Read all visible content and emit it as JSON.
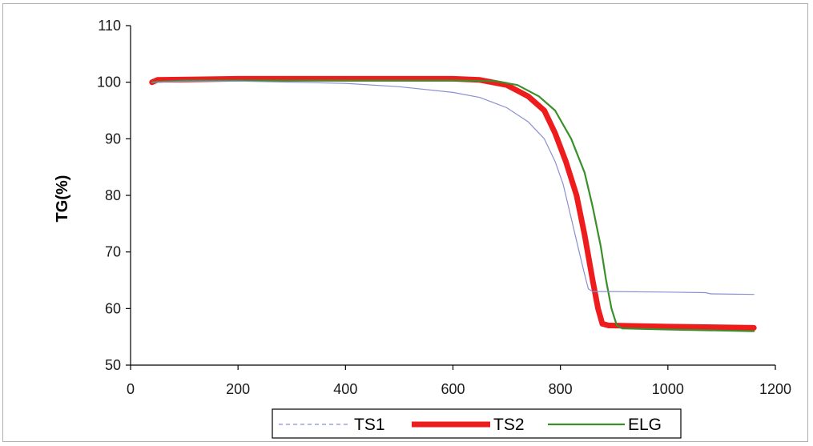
{
  "chart_data": {
    "type": "line",
    "xlabel": "",
    "ylabel": "TG(%)",
    "xlim": [
      0,
      1200
    ],
    "ylim": [
      50,
      110
    ],
    "xticks": [
      "0",
      "200",
      "400",
      "600",
      "800",
      "1000",
      "1200"
    ],
    "yticks": [
      "50",
      "60",
      "70",
      "80",
      "90",
      "100",
      "110"
    ],
    "grid": false,
    "legend_position": "bottom",
    "series": [
      {
        "name": "TS1",
        "color": "#8a8fd0",
        "style": "thin",
        "points": [
          [
            40,
            100.0
          ],
          [
            100,
            100.2
          ],
          [
            200,
            100.2
          ],
          [
            400,
            99.8
          ],
          [
            500,
            99.2
          ],
          [
            600,
            98.2
          ],
          [
            650,
            97.3
          ],
          [
            700,
            95.5
          ],
          [
            740,
            93.0
          ],
          [
            770,
            90.0
          ],
          [
            790,
            86.0
          ],
          [
            805,
            82.0
          ],
          [
            820,
            76.0
          ],
          [
            835,
            70.0
          ],
          [
            845,
            66.0
          ],
          [
            852,
            63.5
          ],
          [
            860,
            63.0
          ],
          [
            900,
            63.0
          ],
          [
            1000,
            62.9
          ],
          [
            1070,
            62.8
          ],
          [
            1080,
            62.6
          ],
          [
            1160,
            62.5
          ]
        ]
      },
      {
        "name": "TS2",
        "color": "#ee1c1c",
        "style": "thick",
        "points": [
          [
            40,
            100.0
          ],
          [
            50,
            100.4
          ],
          [
            200,
            100.6
          ],
          [
            400,
            100.6
          ],
          [
            600,
            100.6
          ],
          [
            650,
            100.4
          ],
          [
            700,
            99.5
          ],
          [
            740,
            97.5
          ],
          [
            770,
            95.0
          ],
          [
            790,
            91.0
          ],
          [
            810,
            86.0
          ],
          [
            830,
            80.0
          ],
          [
            845,
            73.0
          ],
          [
            860,
            65.0
          ],
          [
            870,
            60.0
          ],
          [
            878,
            57.3
          ],
          [
            890,
            57.0
          ],
          [
            1000,
            56.8
          ],
          [
            1160,
            56.6
          ]
        ]
      },
      {
        "name": "ELG",
        "color": "#3a8f2a",
        "style": "medium",
        "points": [
          [
            40,
            100.0
          ],
          [
            100,
            100.3
          ],
          [
            200,
            100.3
          ],
          [
            400,
            100.3
          ],
          [
            600,
            100.3
          ],
          [
            680,
            100.2
          ],
          [
            720,
            99.5
          ],
          [
            760,
            97.5
          ],
          [
            790,
            95.0
          ],
          [
            820,
            90.0
          ],
          [
            845,
            84.0
          ],
          [
            860,
            78.0
          ],
          [
            875,
            71.0
          ],
          [
            885,
            65.0
          ],
          [
            895,
            60.0
          ],
          [
            905,
            57.0
          ],
          [
            915,
            56.5
          ],
          [
            1000,
            56.3
          ],
          [
            1160,
            56.0
          ]
        ]
      }
    ]
  }
}
